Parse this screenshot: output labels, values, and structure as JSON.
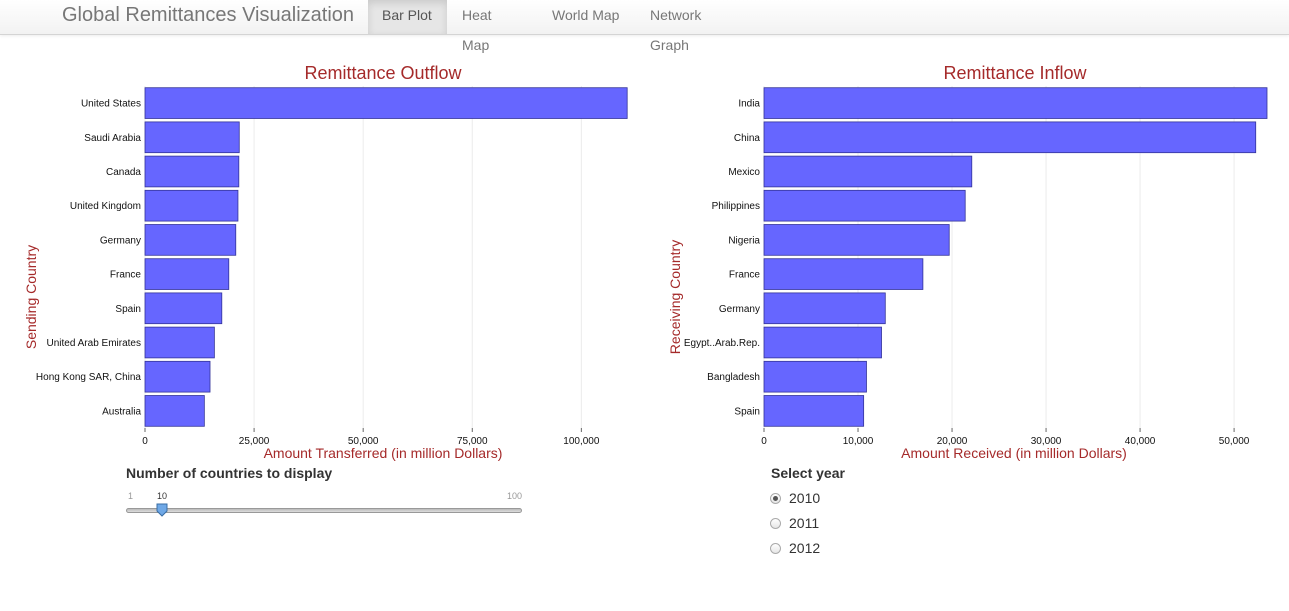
{
  "navbar": {
    "brand": "Global Remittances Visualization",
    "tabs": [
      {
        "label": "Bar Plot",
        "active": true
      },
      {
        "label": "Heat Map",
        "active": false
      },
      {
        "label": "World Map",
        "active": false
      },
      {
        "label": "Network Graph",
        "active": false
      }
    ]
  },
  "colors": {
    "bar_fill": "#6666ff",
    "bar_stroke": "#333399",
    "title_red": "#a52a2a",
    "grid": "#ececec"
  },
  "chart_data": [
    {
      "type": "bar",
      "orientation": "horizontal",
      "title": "Remittance Outflow",
      "xlabel": "Amount Transferred (in million Dollars)",
      "ylabel": "Sending Country",
      "xlim": [
        0,
        110000
      ],
      "ticks": [
        0,
        25000,
        50000,
        75000,
        100000
      ],
      "tick_labels": [
        "0",
        "25,000",
        "50,000",
        "75,000",
        "100,000"
      ],
      "grid": true,
      "categories": [
        "United States",
        "Saudi Arabia",
        "Canada",
        "United Kingdom",
        "Germany",
        "France",
        "Spain",
        "United Arab Emirates",
        "Hong Kong SAR, China",
        "Australia"
      ],
      "values": [
        110500,
        21600,
        21500,
        21300,
        20800,
        19200,
        17600,
        15900,
        14900,
        13600
      ]
    },
    {
      "type": "bar",
      "orientation": "horizontal",
      "title": "Remittance Inflow",
      "xlabel": "Amount Received (in million Dollars)",
      "ylabel": "Receiving Country",
      "xlim": [
        0,
        53500
      ],
      "ticks": [
        0,
        10000,
        20000,
        30000,
        40000,
        50000
      ],
      "tick_labels": [
        "0",
        "10,000",
        "20,000",
        "30,000",
        "40,000",
        "50,000"
      ],
      "grid": true,
      "categories": [
        "India",
        "China",
        "Mexico",
        "Philippines",
        "Nigeria",
        "France",
        "Germany",
        "Egypt..Arab.Rep.",
        "Bangladesh",
        "Spain"
      ],
      "values": [
        53500,
        52300,
        22100,
        21400,
        19700,
        16900,
        12900,
        12500,
        10900,
        10600
      ]
    }
  ],
  "slider": {
    "label": "Number of countries to display",
    "min": "1",
    "max": "100",
    "value": "10",
    "fraction": 0.0909
  },
  "year_select": {
    "label": "Select year",
    "options": [
      {
        "label": "2010",
        "checked": true
      },
      {
        "label": "2011",
        "checked": false
      },
      {
        "label": "2012",
        "checked": false
      }
    ]
  }
}
